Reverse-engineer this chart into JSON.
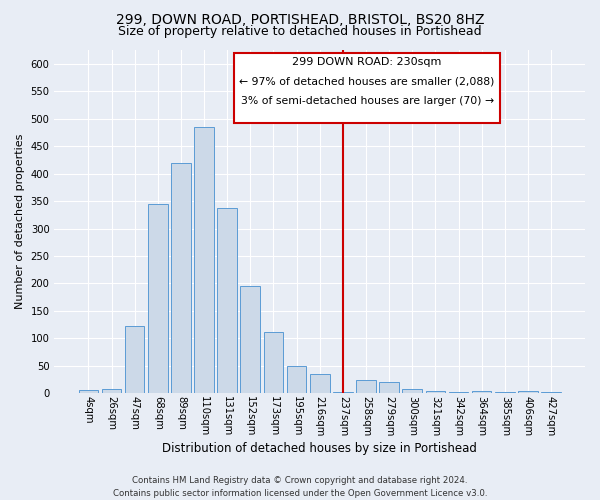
{
  "title1": "299, DOWN ROAD, PORTISHEAD, BRISTOL, BS20 8HZ",
  "title2": "Size of property relative to detached houses in Portishead",
  "xlabel": "Distribution of detached houses by size in Portishead",
  "ylabel": "Number of detached properties",
  "footer": "Contains HM Land Registry data © Crown copyright and database right 2024.\nContains public sector information licensed under the Open Government Licence v3.0.",
  "categories": [
    "4sqm",
    "26sqm",
    "47sqm",
    "68sqm",
    "89sqm",
    "110sqm",
    "131sqm",
    "152sqm",
    "173sqm",
    "195sqm",
    "216sqm",
    "237sqm",
    "258sqm",
    "279sqm",
    "300sqm",
    "321sqm",
    "342sqm",
    "364sqm",
    "385sqm",
    "406sqm",
    "427sqm"
  ],
  "values": [
    6,
    8,
    122,
    345,
    420,
    485,
    338,
    195,
    112,
    50,
    36,
    2,
    25,
    20,
    8,
    4,
    2,
    5,
    3,
    4,
    2
  ],
  "bar_color": "#ccd9e8",
  "bar_edge_color": "#5b9bd5",
  "vline_x_index": 11,
  "vline_label": "299 DOWN ROAD: 230sqm",
  "annotation_line1": "← 97% of detached houses are smaller (2,088)",
  "annotation_line2": "3% of semi-detached houses are larger (70) →",
  "annotation_box_color": "#ffffff",
  "annotation_box_edge": "#cc0000",
  "vline_color": "#cc0000",
  "ylim": [
    0,
    625
  ],
  "yticks": [
    0,
    50,
    100,
    150,
    200,
    250,
    300,
    350,
    400,
    450,
    500,
    550,
    600
  ],
  "bg_color": "#e8edf5",
  "plot_bg_color": "#e8edf5",
  "grid_color": "#ffffff",
  "title1_fontsize": 10,
  "title2_fontsize": 9,
  "ylabel_fontsize": 8,
  "xlabel_fontsize": 8.5,
  "tick_fontsize": 7.2,
  "footer_fontsize": 6.2
}
